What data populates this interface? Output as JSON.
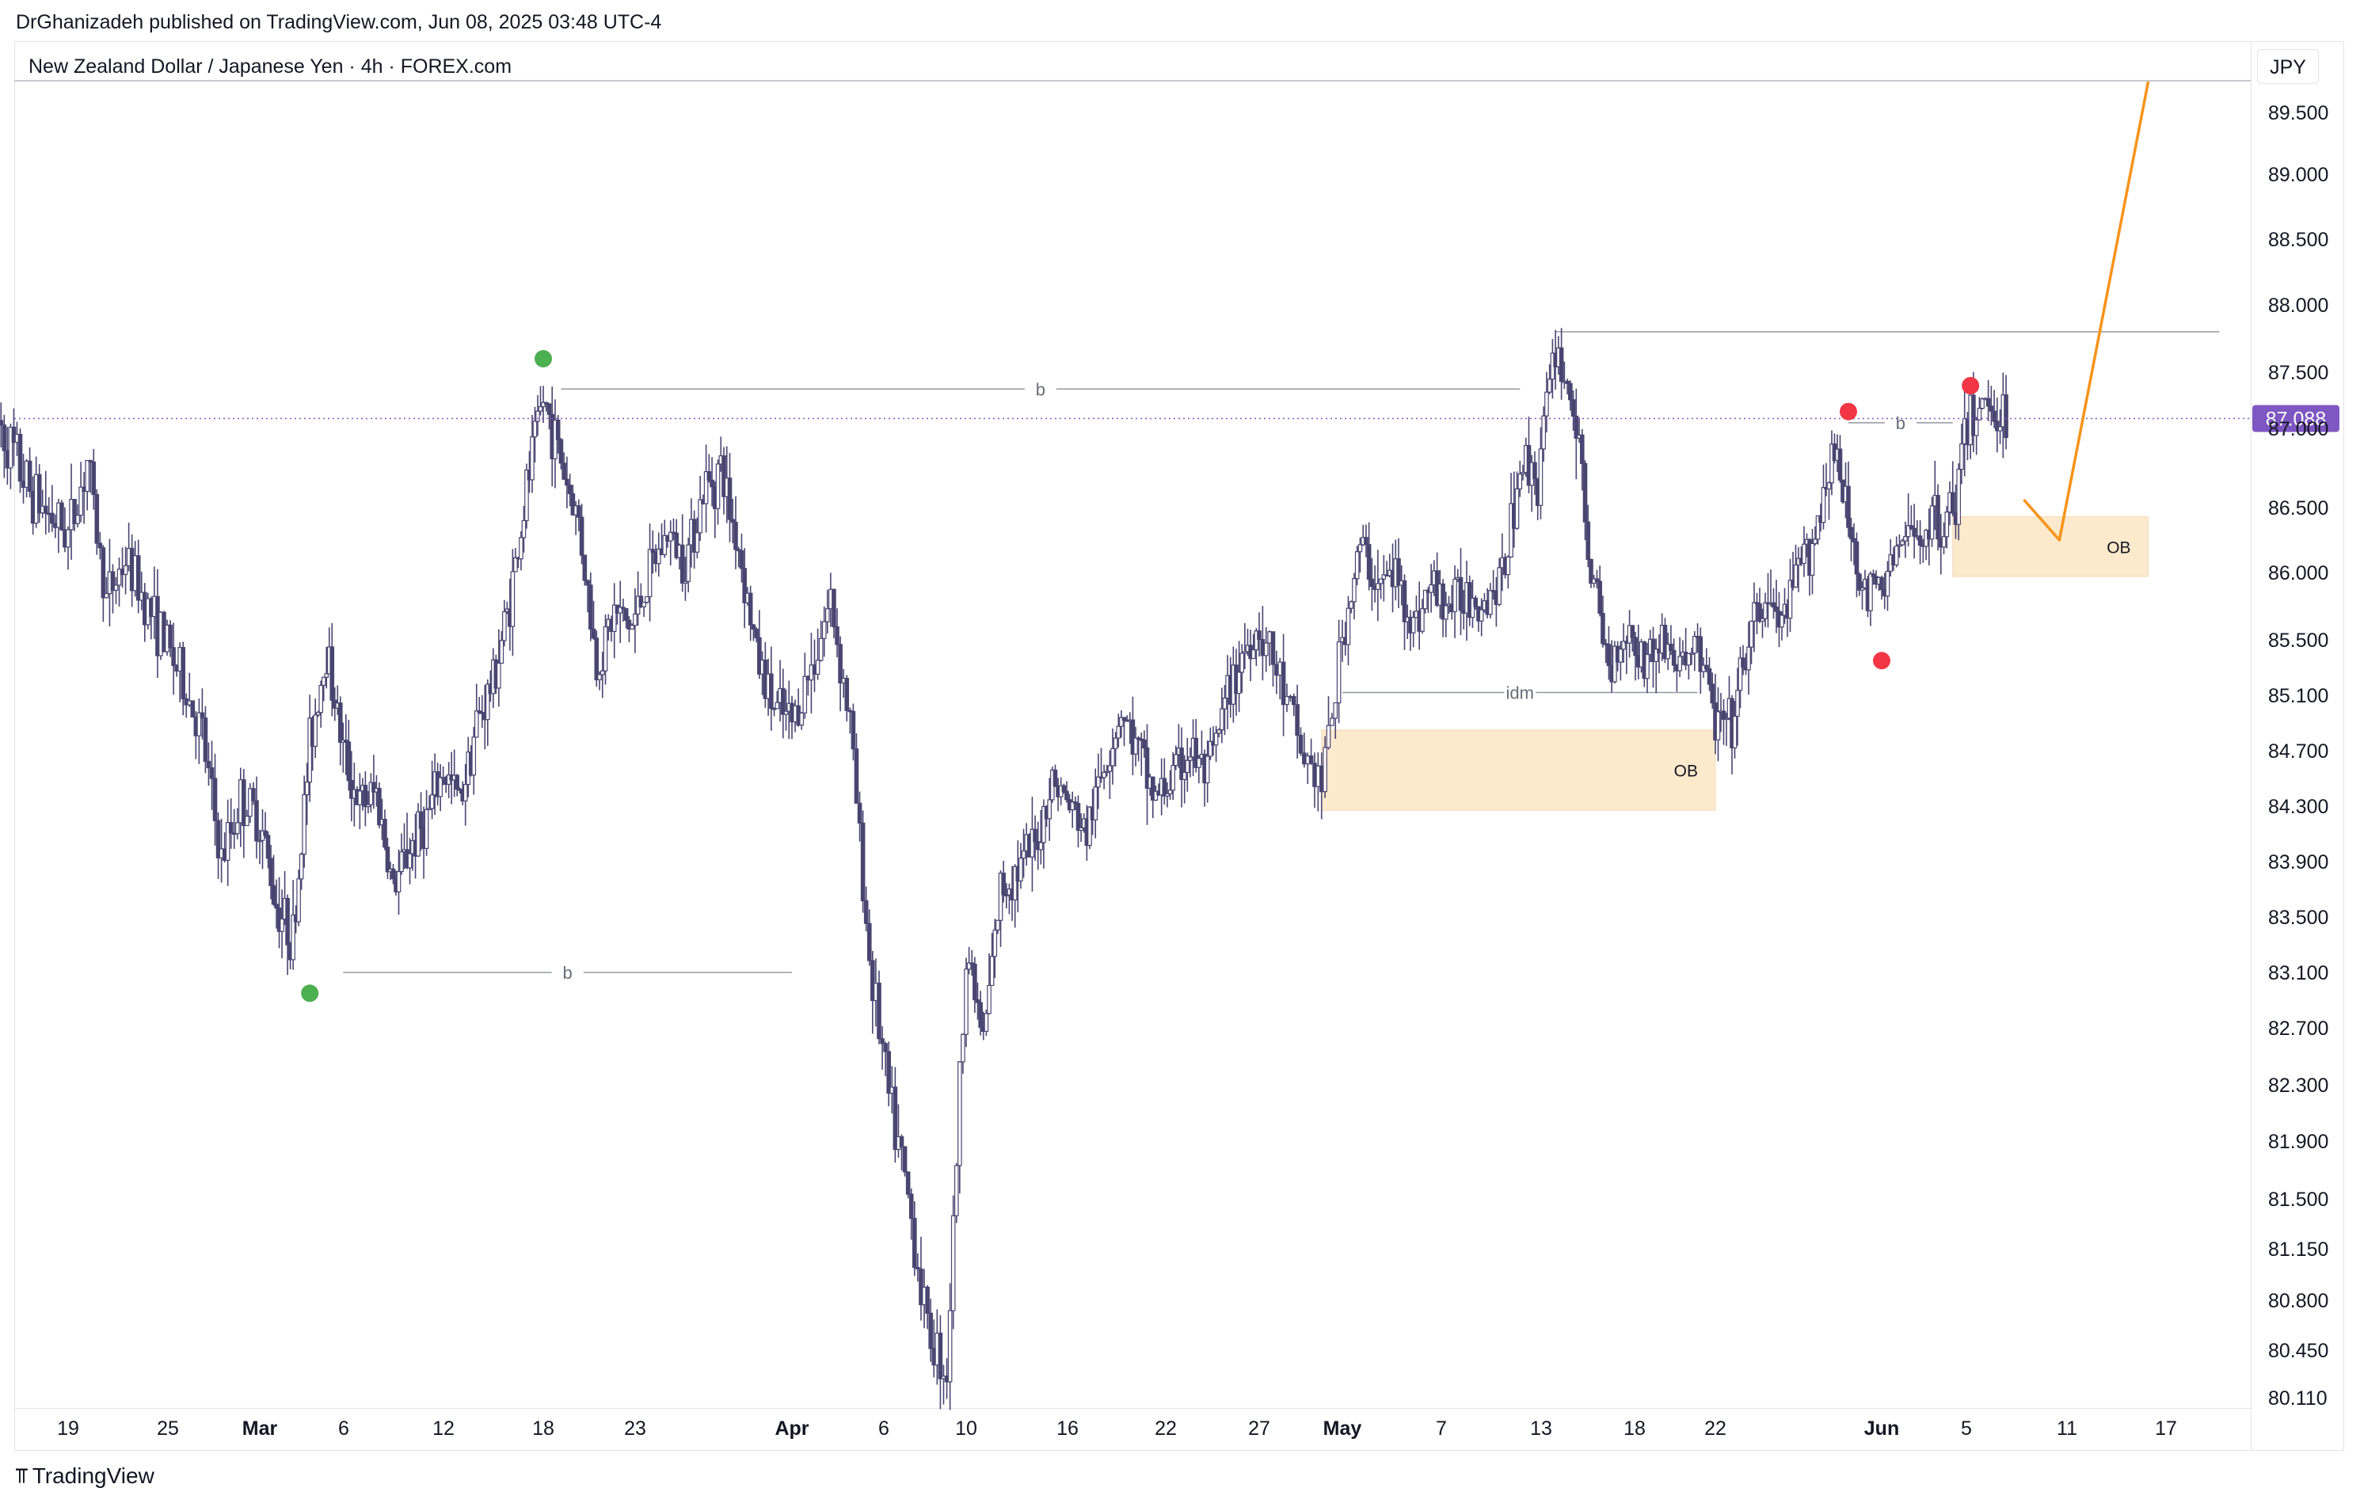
{
  "attribution": "DrGhanizadeh published on TradingView.com, Jun 08, 2025 03:48 UTC-4",
  "symbol_title": "New Zealand Dollar / Japanese Yen · 4h · FOREX.com",
  "currency": "JPY",
  "footer": {
    "logo_icon": "tradingview-logo-icon",
    "brand": "TradingView"
  },
  "colors": {
    "candle": "#4a4470",
    "ob_fill": "#fde9cc",
    "pivot_green": "#4caf50",
    "pivot_red": "#f23645",
    "projection": "#f7931a",
    "price_tag": "#7e57c2",
    "guide_line": "#9598a1"
  },
  "chart_data": {
    "type": "candlestick",
    "symbol": "NZDJPY",
    "interval": "4h",
    "x_tick_labels": [
      "19",
      "25",
      "Mar",
      "6",
      "12",
      "18",
      "23",
      "Apr",
      "6",
      "10",
      "16",
      "22",
      "27",
      "May",
      "7",
      "13",
      "18",
      "22",
      "Jun",
      "5",
      "11",
      "17"
    ],
    "y_tick_labels": [
      "89.500",
      "89.000",
      "88.500",
      "88.000",
      "87.500",
      "87.000",
      "86.500",
      "86.000",
      "85.500",
      "85.100",
      "84.700",
      "84.300",
      "83.900",
      "83.500",
      "83.100",
      "82.700",
      "82.300",
      "81.900",
      "81.500",
      "81.150",
      "80.800",
      "80.450",
      "80.110"
    ],
    "ylim": [
      80.11,
      89.5
    ],
    "last_price": "87.088",
    "price_path": [
      [
        "Feb 15",
        87.15
      ],
      [
        "Feb 17",
        86.6
      ],
      [
        "Feb 19",
        86.3
      ],
      [
        "Feb 20",
        86.8
      ],
      [
        "Feb 21",
        85.8
      ],
      [
        "Feb 22",
        86.1
      ],
      [
        "Feb 24",
        85.5
      ],
      [
        "Feb 25",
        85.2
      ],
      [
        "Feb 26",
        84.8
      ],
      [
        "Feb 27",
        83.9
      ],
      [
        "Feb 28",
        84.35
      ],
      [
        "Mar 1",
        84.2
      ],
      [
        "Mar 2",
        83.6
      ],
      [
        "Mar 3",
        83.35
      ],
      [
        "Mar 4",
        84.75
      ],
      [
        "Mar 5",
        85.45
      ],
      [
        "Mar 6",
        84.7
      ],
      [
        "Mar 7",
        84.3
      ],
      [
        "Mar 8",
        84.4
      ],
      [
        "Mar 9",
        83.7
      ],
      [
        "Mar 10",
        84.0
      ],
      [
        "Mar 11",
        84.2
      ],
      [
        "Mar 12",
        84.55
      ],
      [
        "Mar 13",
        84.35
      ],
      [
        "Mar 14",
        84.9
      ],
      [
        "Mar 15",
        85.2
      ],
      [
        "Mar 16",
        85.8
      ],
      [
        "Mar 17",
        86.6
      ],
      [
        "Mar 18",
        87.25
      ],
      [
        "Mar 19",
        86.8
      ],
      [
        "Mar 20",
        86.4
      ],
      [
        "Mar 21",
        85.3
      ],
      [
        "Mar 22",
        85.7
      ],
      [
        "Mar 23",
        85.6
      ],
      [
        "Mar 24",
        86.0
      ],
      [
        "Mar 25",
        86.3
      ],
      [
        "Mar 26",
        86.1
      ],
      [
        "Mar 27",
        86.6
      ],
      [
        "Mar 28",
        86.75
      ],
      [
        "Mar 29",
        86.2
      ],
      [
        "Mar 30",
        85.4
      ],
      [
        "Mar 31",
        85.0
      ],
      [
        "Apr 1",
        84.9
      ],
      [
        "Apr 2",
        85.3
      ],
      [
        "Apr 3",
        85.8
      ],
      [
        "Apr 4",
        84.9
      ],
      [
        "Apr 5",
        83.2
      ],
      [
        "Apr 6",
        82.2
      ],
      [
        "Apr 7",
        81.5
      ],
      [
        "Apr 8",
        80.6
      ],
      [
        "Apr 9",
        80.3
      ],
      [
        "Apr 10",
        83.3
      ],
      [
        "Apr 11",
        82.6
      ],
      [
        "Apr 12",
        83.7
      ],
      [
        "Apr 14",
        84.0
      ],
      [
        "Apr 15",
        84.5
      ],
      [
        "Apr 16",
        84.3
      ],
      [
        "Apr 17",
        84.1
      ],
      [
        "Apr 18",
        84.6
      ],
      [
        "Apr 19",
        85.0
      ],
      [
        "Apr 21",
        84.35
      ],
      [
        "Apr 22",
        84.5
      ],
      [
        "Apr 23",
        84.7
      ],
      [
        "Apr 24",
        84.5
      ],
      [
        "Apr 25",
        85.0
      ],
      [
        "Apr 26",
        85.4
      ],
      [
        "Apr 27",
        85.6
      ],
      [
        "Apr 28",
        85.2
      ],
      [
        "Apr 29",
        84.7
      ],
      [
        "Apr 30",
        84.45
      ],
      [
        "May 1",
        85.5
      ],
      [
        "May 2",
        86.2
      ],
      [
        "May 3",
        85.9
      ],
      [
        "May 4",
        86.0
      ],
      [
        "May 5",
        85.6
      ],
      [
        "May 6",
        85.9
      ],
      [
        "May 7",
        85.75
      ],
      [
        "May 8",
        85.85
      ],
      [
        "May 9",
        85.8
      ],
      [
        "May 10",
        85.95
      ],
      [
        "May 11",
        86.8
      ],
      [
        "May 12",
        86.7
      ],
      [
        "May 13",
        87.7
      ],
      [
        "May 14",
        87.2
      ],
      [
        "May 15",
        86.0
      ],
      [
        "May 16",
        85.3
      ],
      [
        "May 17",
        85.6
      ],
      [
        "May 18",
        85.35
      ],
      [
        "May 19",
        85.5
      ],
      [
        "May 20",
        85.3
      ],
      [
        "May 21",
        85.5
      ],
      [
        "May 22",
        84.9
      ],
      [
        "May 23",
        84.85
      ],
      [
        "May 24",
        85.5
      ],
      [
        "May 25",
        85.8
      ],
      [
        "May 26",
        85.6
      ],
      [
        "May 27",
        86.0
      ],
      [
        "May 28",
        86.3
      ],
      [
        "May 29",
        86.9
      ],
      [
        "May 30",
        86.4
      ],
      [
        "May 31",
        85.8
      ],
      [
        "Jun 1",
        85.9
      ],
      [
        "Jun 2",
        86.2
      ],
      [
        "Jun 3",
        86.3
      ],
      [
        "Jun 4",
        86.4
      ],
      [
        "Jun 5",
        86.45
      ],
      [
        "Jun 6",
        87.1
      ],
      [
        "Jun 7",
        87.25
      ],
      [
        "Jun 8",
        87.1
      ]
    ],
    "annotations": [
      {
        "kind": "swing_high",
        "color": "green",
        "date": "Mar 18",
        "price": 87.6
      },
      {
        "kind": "swing_low",
        "color": "green",
        "date": "Mar 4",
        "price": 82.95
      },
      {
        "kind": "swing_high",
        "color": "red",
        "date": "May 30",
        "price": 87.15
      },
      {
        "kind": "swing_high",
        "color": "red",
        "date": "Jun 6",
        "price": 87.38
      },
      {
        "kind": "swing_low",
        "color": "red",
        "date": "Jun 1",
        "price": 85.35
      },
      {
        "kind": "level",
        "label": "b",
        "price": 87.35,
        "from": "Mar 19",
        "to": "May 11"
      },
      {
        "kind": "level",
        "label": "b",
        "price": 83.1,
        "from": "Mar 6",
        "to": "Apr 1"
      },
      {
        "kind": "level",
        "label": "b",
        "price": 87.05,
        "from": "May 30",
        "to": "Jun 5"
      },
      {
        "kind": "level",
        "label": "idm",
        "price": 85.12,
        "from": "May 1",
        "to": "May 21"
      },
      {
        "kind": "level",
        "label": "",
        "price": 87.8,
        "from": "May 13",
        "to": "Jun 20"
      },
      {
        "kind": "zone",
        "label": "OB",
        "top": 84.85,
        "bottom": 84.27,
        "from": "Apr 30",
        "to": "May 22"
      },
      {
        "kind": "zone",
        "label": "OB",
        "top": 86.43,
        "bottom": 85.97,
        "from": "Jun 5",
        "to": "Jun 16"
      },
      {
        "kind": "projection",
        "points": [
          [
            "Jun 9",
            86.55
          ],
          [
            "Jun 11",
            86.25
          ],
          [
            "Jun 16",
            89.75
          ]
        ]
      }
    ]
  }
}
